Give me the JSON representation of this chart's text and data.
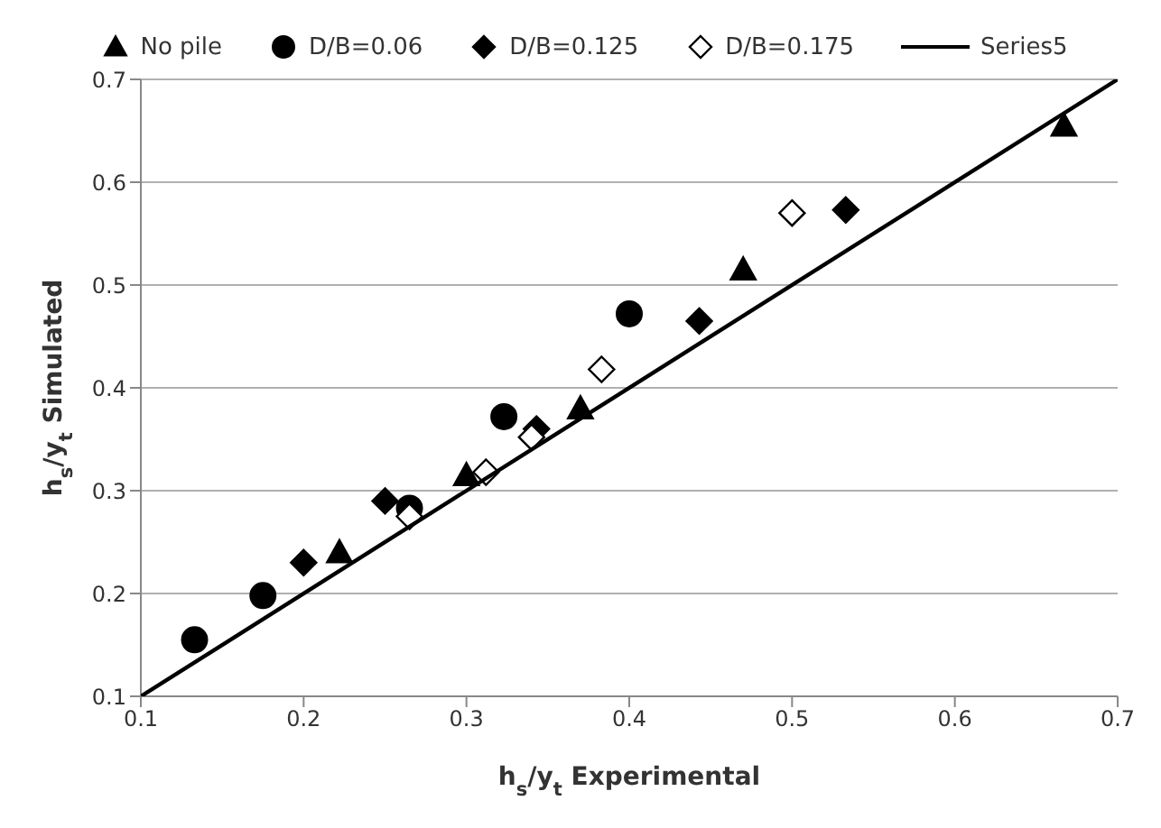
{
  "chart_data": {
    "type": "scatter",
    "xlabel": "h$_{s}$/y$_{t}$ Experimental",
    "ylabel": "h$_{s}$/y$_{t}$ Simulated",
    "xlim": [
      0.1,
      0.7
    ],
    "xticks": [
      0.1,
      0.2,
      0.3,
      0.4,
      0.5,
      0.6,
      0.7
    ],
    "ylim": [
      0.1,
      0.7
    ],
    "yticks": [
      0.1,
      0.2,
      0.3,
      0.4,
      0.5,
      0.6,
      0.7
    ],
    "grid": "y",
    "legend": "top",
    "series": [
      {
        "name": "No pile",
        "color": "#000000",
        "marker": "triangle",
        "x": [
          0.222,
          0.3,
          0.37,
          0.47,
          0.667
        ],
        "values": [
          0.24,
          0.315,
          0.38,
          0.515,
          0.655
        ]
      },
      {
        "name": "D/B=0.06",
        "color": "#000000",
        "marker": "circle",
        "x": [
          0.133,
          0.175,
          0.265,
          0.323,
          0.4
        ],
        "values": [
          0.155,
          0.198,
          0.283,
          0.372,
          0.472
        ]
      },
      {
        "name": "D/B=0.125",
        "color": "#000000",
        "marker": "diamond",
        "x": [
          0.2,
          0.25,
          0.343,
          0.443,
          0.533
        ],
        "values": [
          0.23,
          0.29,
          0.36,
          0.465,
          0.573
        ]
      },
      {
        "name": "D/B=0.175",
        "color": "#ffffff",
        "marker": "diamond",
        "x": [
          0.265,
          0.312,
          0.34,
          0.383,
          0.5
        ],
        "values": [
          0.275,
          0.318,
          0.352,
          0.418,
          0.57
        ]
      },
      {
        "name": "Series5",
        "type": "line",
        "color": "#000000",
        "marker": "none",
        "line_style": "solid",
        "x": [
          0.1,
          0.7
        ],
        "values": [
          0.1,
          0.7
        ]
      }
    ]
  }
}
